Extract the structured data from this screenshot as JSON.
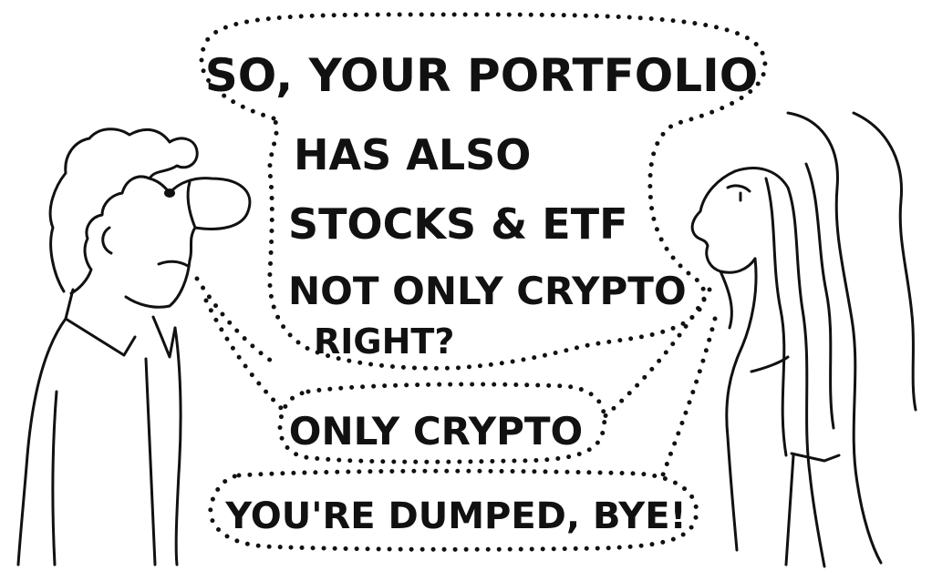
{
  "speech": {
    "question": {
      "line1": "SO, YOUR PORTFOLIO",
      "line2": "HAS ALSO",
      "line3": "STOCKS & ETF",
      "line4": "NOT ONLY CRYPTO",
      "line5": "RIGHT?"
    },
    "answer": "ONLY CRYPTO",
    "reply": "YOU'RE DUMPED, BYE!"
  },
  "colors": {
    "ink": "#111111",
    "paper": "#ffffff"
  }
}
